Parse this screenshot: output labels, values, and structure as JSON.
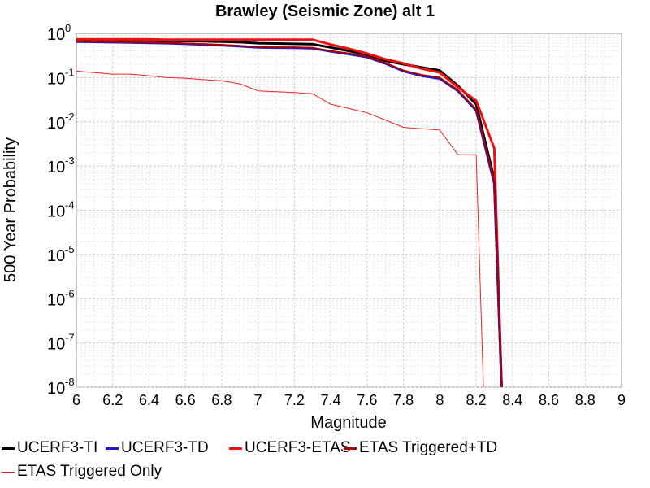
{
  "chart_data": {
    "type": "line",
    "title": "Brawley (Seismic Zone) alt 1",
    "xlabel": "Magnitude",
    "ylabel": "500 Year Probability",
    "xlim": [
      6,
      9
    ],
    "ylim": [
      1e-08,
      1
    ],
    "y_scale": "log",
    "grid": true,
    "legend_position": "bottom",
    "x_ticks": [
      "6",
      "6.2",
      "6.4",
      "6.6",
      "6.8",
      "7",
      "7.2",
      "7.4",
      "7.6",
      "7.8",
      "8",
      "8.2",
      "8.4",
      "8.6",
      "8.8",
      "9"
    ],
    "y_ticks": [
      {
        "base": "10",
        "exp": "0"
      },
      {
        "base": "10",
        "exp": "-1"
      },
      {
        "base": "10",
        "exp": "-2"
      },
      {
        "base": "10",
        "exp": "-3"
      },
      {
        "base": "10",
        "exp": "-4"
      },
      {
        "base": "10",
        "exp": "-5"
      },
      {
        "base": "10",
        "exp": "-6"
      },
      {
        "base": "10",
        "exp": "-7"
      },
      {
        "base": "10",
        "exp": "-8"
      }
    ],
    "series": [
      {
        "name": "UCERF3-TI",
        "color": "#000000",
        "x": [
          6.0,
          6.1,
          6.2,
          6.3,
          6.4,
          6.5,
          6.6,
          6.7,
          6.8,
          6.9,
          7.0,
          7.1,
          7.2,
          7.3,
          7.4,
          7.5,
          7.6,
          7.7,
          7.8,
          7.9,
          8.0,
          8.1,
          8.2,
          8.3,
          8.34
        ],
        "y": [
          0.7,
          0.7,
          0.7,
          0.7,
          0.69,
          0.68,
          0.67,
          0.66,
          0.65,
          0.63,
          0.6,
          0.59,
          0.58,
          0.57,
          0.48,
          0.4,
          0.33,
          0.24,
          0.2,
          0.17,
          0.145,
          0.065,
          0.025,
          0.0005,
          1e-08
        ]
      },
      {
        "name": "UCERF3-TD",
        "color": "#1a1acc",
        "x": [
          6.0,
          6.1,
          6.2,
          6.3,
          6.4,
          6.5,
          6.6,
          6.7,
          6.8,
          6.9,
          7.0,
          7.1,
          7.2,
          7.3,
          7.4,
          7.5,
          7.6,
          7.7,
          7.8,
          7.9,
          8.0,
          8.1,
          8.2,
          8.3,
          8.34
        ],
        "y": [
          0.65,
          0.64,
          0.63,
          0.62,
          0.61,
          0.6,
          0.58,
          0.56,
          0.54,
          0.51,
          0.48,
          0.475,
          0.47,
          0.46,
          0.39,
          0.34,
          0.29,
          0.21,
          0.14,
          0.11,
          0.095,
          0.05,
          0.018,
          0.0004,
          1e-08
        ]
      },
      {
        "name": "UCERF3-ETAS",
        "color": "#ee1111",
        "x": [
          6.0,
          6.1,
          6.2,
          6.3,
          6.4,
          6.5,
          6.6,
          6.7,
          6.8,
          6.9,
          7.0,
          7.1,
          7.2,
          7.3,
          7.4,
          7.5,
          7.6,
          7.7,
          7.8,
          7.9,
          8.0,
          8.1,
          8.2,
          8.3,
          8.34
        ],
        "y": [
          0.73,
          0.73,
          0.73,
          0.73,
          0.73,
          0.72,
          0.72,
          0.72,
          0.72,
          0.72,
          0.72,
          0.72,
          0.72,
          0.72,
          0.56,
          0.45,
          0.35,
          0.26,
          0.21,
          0.16,
          0.13,
          0.06,
          0.03,
          0.0025,
          1e-08
        ]
      },
      {
        "name": "ETAS Triggered+TD",
        "color": "#aa0000",
        "x": [
          6.0,
          6.1,
          6.2,
          6.3,
          6.4,
          6.5,
          6.6,
          6.7,
          6.8,
          6.9,
          7.0,
          7.1,
          7.2,
          7.3,
          7.4,
          7.5,
          7.6,
          7.7,
          7.8,
          7.9,
          8.0,
          8.1,
          8.2,
          8.3,
          8.34
        ],
        "y": [
          0.66,
          0.65,
          0.64,
          0.63,
          0.62,
          0.61,
          0.59,
          0.57,
          0.55,
          0.52,
          0.49,
          0.485,
          0.48,
          0.47,
          0.4,
          0.35,
          0.3,
          0.215,
          0.145,
          0.115,
          0.1,
          0.052,
          0.019,
          0.00045,
          1e-08
        ]
      },
      {
        "name": "ETAS Triggered Only",
        "color": "#ee2222",
        "x": [
          6.0,
          6.1,
          6.2,
          6.3,
          6.4,
          6.5,
          6.6,
          6.7,
          6.8,
          6.9,
          7.0,
          7.1,
          7.2,
          7.3,
          7.4,
          7.5,
          7.6,
          7.7,
          7.8,
          7.9,
          8.0,
          8.1,
          8.2,
          8.24
        ],
        "y": [
          0.14,
          0.13,
          0.12,
          0.12,
          0.11,
          0.1,
          0.097,
          0.09,
          0.085,
          0.072,
          0.05,
          0.048,
          0.046,
          0.043,
          0.025,
          0.02,
          0.016,
          0.011,
          0.0075,
          0.007,
          0.0065,
          0.0018,
          0.0018,
          1e-08
        ]
      }
    ]
  }
}
